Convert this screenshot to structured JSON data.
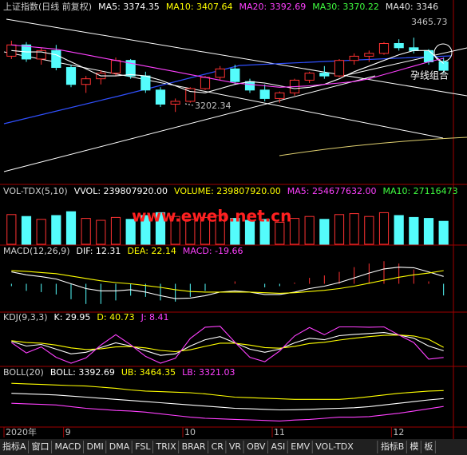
{
  "chart_data": [
    {
      "type": "candlestick",
      "title": "上证指数(日线 前复权)",
      "legend": [
        {
          "label": "MA5: 3374.35",
          "color": "#ffffff"
        },
        {
          "label": "MA10: 3407.64",
          "color": "#ffff00"
        },
        {
          "label": "MA20: 3392.69",
          "color": "#ff40ff"
        },
        {
          "label": "MA30: 3370.22",
          "color": "#40ff40"
        },
        {
          "label": "MA40: 3346",
          "color": "#e0e0e0"
        }
      ],
      "categories": [
        "2020年",
        null,
        null,
        null,
        "9",
        null,
        null,
        null,
        null,
        null,
        null,
        null,
        "10",
        null,
        null,
        null,
        null,
        null,
        "11",
        null,
        null,
        null,
        null,
        null,
        null,
        null,
        "12",
        null,
        null,
        null
      ],
      "open": [
        3400,
        3440,
        3390,
        3420,
        3360,
        3300,
        3320,
        3340,
        3385,
        3330,
        3280,
        3230,
        3240,
        3285,
        3325,
        3355,
        3310,
        3280,
        3250,
        3270,
        3315,
        3340,
        3330,
        3385,
        3400,
        3410,
        3445,
        3430,
        3420,
        3380
      ],
      "high": [
        3455,
        3450,
        3430,
        3440,
        3370,
        3330,
        3350,
        3395,
        3390,
        3345,
        3290,
        3250,
        3290,
        3330,
        3365,
        3370,
        3320,
        3300,
        3275,
        3320,
        3345,
        3365,
        3390,
        3410,
        3420,
        3450,
        3460,
        3465.73,
        3425,
        3395
      ],
      "low": [
        3390,
        3380,
        3370,
        3350,
        3290,
        3270,
        3300,
        3330,
        3320,
        3270,
        3220,
        3202.34,
        3235,
        3280,
        3315,
        3300,
        3270,
        3240,
        3235,
        3260,
        3305,
        3320,
        3325,
        3370,
        3380,
        3405,
        3420,
        3410,
        3370,
        3340
      ],
      "close": [
        3440,
        3390,
        3420,
        3360,
        3300,
        3320,
        3340,
        3385,
        3330,
        3280,
        3230,
        3240,
        3285,
        3325,
        3355,
        3310,
        3280,
        3250,
        3270,
        3315,
        3340,
        3330,
        3385,
        3400,
        3410,
        3445,
        3430,
        3420,
        3380,
        3350
      ],
      "up_color": "#ff3232",
      "down_color": "#54fcfc",
      "series": [
        {
          "color": "#ffffff",
          "values": [
            3420,
            3415,
            3415,
            3405,
            3380,
            3355,
            3330,
            3330,
            3335,
            3330,
            3315,
            3295,
            3275,
            3270,
            3285,
            3300,
            3310,
            3305,
            3295,
            3285,
            3290,
            3300,
            3320,
            3345,
            3365,
            3385,
            3405,
            3420,
            3420,
            3374.35
          ]
        },
        {
          "color": "#ff40ff",
          "values": [
            3440,
            3435,
            3430,
            3425,
            3415,
            3405,
            3395,
            3385,
            3375,
            3365,
            3355,
            3345,
            3335,
            3325,
            3315,
            3305,
            3300,
            3295,
            3290,
            3292,
            3295,
            3300,
            3305,
            3310,
            3320,
            3335,
            3350,
            3365,
            3380,
            3392.69
          ]
        }
      ],
      "annotations": [
        "3465.73",
        "3202.34",
        "孕线组合"
      ],
      "ylim": [
        2954,
        3537
      ]
    },
    {
      "type": "volume",
      "title": "VOL-TDX(5,10)",
      "legend": [
        {
          "label": "VVOL: 239807920.00",
          "color": "#ffffff"
        },
        {
          "label": "VOLUME: 239807920.00",
          "color": "#ffff00"
        },
        {
          "label": "MA5: 254677632.00",
          "color": "#ff40ff"
        },
        {
          "label": "MA10: 27116473",
          "color": "#40ff40"
        }
      ],
      "watermark": "www.eweb.net.cn",
      "values": [
        310000000,
        290000000,
        260000000,
        300000000,
        340000000,
        270000000,
        250000000,
        280000000,
        260000000,
        300000000,
        330000000,
        290000000,
        260000000,
        280000000,
        300000000,
        270000000,
        250000000,
        260000000,
        230000000,
        270000000,
        290000000,
        260000000,
        310000000,
        320000000,
        290000000,
        330000000,
        300000000,
        280000000,
        270000000,
        239807920
      ],
      "ylim": [
        0,
        450000000
      ]
    },
    {
      "type": "macd",
      "title": "MACD(12,26,9)",
      "legend": [
        {
          "label": "DIF: 12.31",
          "color": "#ffffff"
        },
        {
          "label": "DEA: 22.14",
          "color": "#ffff00"
        },
        {
          "label": "MACD: -19.66",
          "color": "#ff40ff"
        }
      ],
      "values": [
        -4,
        -12,
        -14,
        -18,
        -26,
        -34,
        -34,
        -28,
        -20,
        -22,
        -28,
        -30,
        -22,
        -12,
        0,
        4,
        0,
        -6,
        -4,
        2,
        10,
        14,
        20,
        28,
        34,
        38,
        34,
        24,
        4,
        -19.66
      ],
      "series": [
        {
          "color": "#ffffff",
          "values": [
            20,
            15,
            12,
            8,
            0,
            -8,
            -12,
            -12,
            -10,
            -14,
            -20,
            -25,
            -24,
            -20,
            -14,
            -12,
            -14,
            -18,
            -18,
            -14,
            -8,
            -4,
            2,
            10,
            18,
            25,
            28,
            27,
            20,
            12.31
          ]
        },
        {
          "color": "#ffff00",
          "values": [
            22,
            21,
            19,
            17,
            13,
            9,
            5,
            2,
            0,
            -3,
            -6,
            -10,
            -13,
            -14,
            -14,
            -14,
            -14,
            -15,
            -16,
            -15,
            -13,
            -11,
            -8,
            -4,
            1,
            6,
            11,
            15,
            18,
            22.14
          ]
        }
      ],
      "ylim": [
        -45,
        45
      ]
    },
    {
      "type": "line",
      "title": "KDJ(9,3,3)",
      "legend": [
        {
          "label": "K: 29.95",
          "color": "#ffffff"
        },
        {
          "label": "D: 40.73",
          "color": "#ffff00"
        },
        {
          "label": "J: 8.41",
          "color": "#ff40ff"
        }
      ],
      "series": [
        {
          "color": "#ffffff",
          "values": [
            60,
            45,
            50,
            35,
            20,
            25,
            40,
            55,
            45,
            30,
            15,
            20,
            45,
            65,
            75,
            55,
            35,
            25,
            35,
            55,
            70,
            65,
            78,
            82,
            85,
            88,
            80,
            70,
            45,
            29.95
          ]
        },
        {
          "color": "#ffff00",
          "values": [
            62,
            56,
            54,
            48,
            39,
            34,
            36,
            42,
            43,
            39,
            31,
            27,
            33,
            44,
            54,
            54,
            48,
            40,
            38,
            44,
            53,
            57,
            64,
            70,
            75,
            79,
            80,
            77,
            66,
            40.73
          ]
        },
        {
          "color": "#ff40ff",
          "values": [
            56,
            23,
            42,
            9,
            -10,
            7,
            48,
            81,
            49,
            12,
            -10,
            6,
            69,
            105,
            108,
            57,
            9,
            -5,
            29,
            77,
            104,
            81,
            106,
            106,
            105,
            106,
            80,
            56,
            3,
            8.41
          ]
        }
      ],
      "ylim": [
        -15,
        115
      ]
    },
    {
      "type": "line",
      "title": "BOLL(20)",
      "legend": [
        {
          "label": "BOLL: 3392.69",
          "color": "#ffffff"
        },
        {
          "label": "UB: 3464.35",
          "color": "#ffff00"
        },
        {
          "label": "LB: 3321.03",
          "color": "#ff40ff"
        }
      ],
      "series": [
        {
          "color": "#ffffff",
          "values": [
            3440,
            3435,
            3430,
            3425,
            3415,
            3405,
            3395,
            3385,
            3375,
            3365,
            3355,
            3345,
            3335,
            3325,
            3315,
            3305,
            3300,
            3295,
            3290,
            3292,
            3295,
            3300,
            3305,
            3310,
            3320,
            3335,
            3350,
            3365,
            3380,
            3392.69
          ]
        },
        {
          "color": "#ffff00",
          "values": [
            3530,
            3525,
            3520,
            3515,
            3510,
            3505,
            3495,
            3485,
            3470,
            3460,
            3455,
            3450,
            3445,
            3435,
            3420,
            3405,
            3400,
            3395,
            3390,
            3385,
            3385,
            3385,
            3385,
            3395,
            3410,
            3425,
            3440,
            3450,
            3460,
            3464.35
          ]
        },
        {
          "color": "#ff40ff",
          "values": [
            3350,
            3345,
            3340,
            3335,
            3320,
            3305,
            3295,
            3285,
            3280,
            3270,
            3255,
            3240,
            3225,
            3215,
            3210,
            3205,
            3200,
            3195,
            3190,
            3199,
            3205,
            3215,
            3225,
            3225,
            3230,
            3245,
            3260,
            3280,
            3300,
            3321.03
          ]
        }
      ],
      "ylim": [
        3150,
        3560
      ]
    }
  ],
  "tabs": [
    "指标A",
    "窗口",
    "MACD",
    "DMI",
    "DMA",
    "FSL",
    "TRIX",
    "BRAR",
    "CR",
    "VR",
    "OBV",
    "ASI",
    "EMV",
    "VOL-TDX",
    "指标B",
    "模",
    "板"
  ]
}
